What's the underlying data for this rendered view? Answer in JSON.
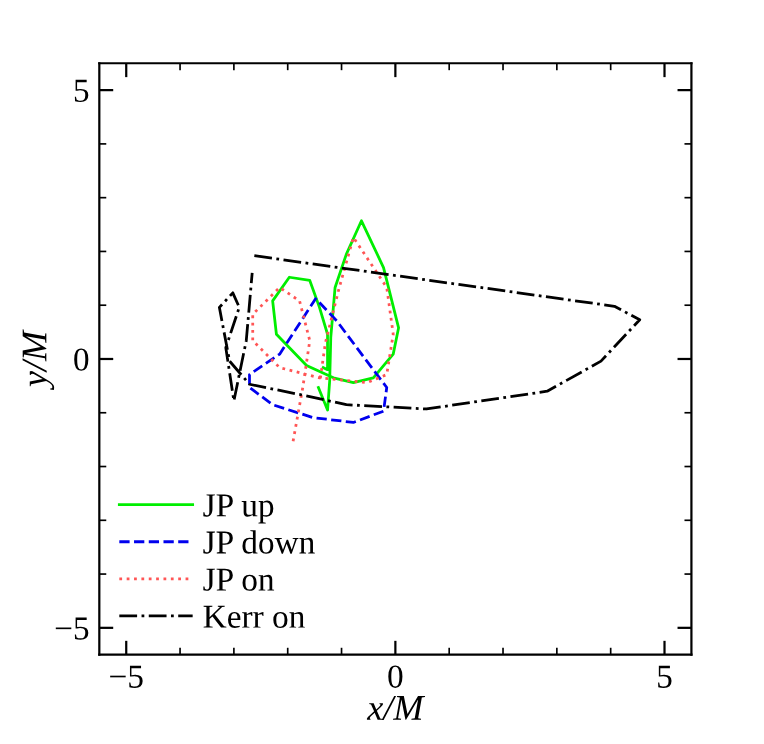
{
  "chart_data": {
    "type": "line",
    "xlabel": "x/M",
    "ylabel": "y/M",
    "xlim": [
      -5.5,
      5.5
    ],
    "ylim": [
      -5.5,
      5.5
    ],
    "xticks": [
      -5,
      0,
      5
    ],
    "yticks": [
      -5,
      0,
      5
    ],
    "grid": false,
    "legend": "bottom left",
    "marker": "none",
    "series": [
      {
        "name": "JP up",
        "color": "#00ee00",
        "line_style": "solid",
        "x": [
          -1.43,
          -1.26,
          -1.22,
          -1.2,
          -1.12,
          -0.91,
          -0.63,
          -0.22,
          0.06,
          -0.04,
          -0.41,
          -0.78,
          -1.15,
          -1.65,
          -2.21,
          -2.28,
          -1.97,
          -1.59,
          -1.41,
          -1.26,
          -1.26,
          -1.34
        ],
        "values": [
          -0.53,
          -0.95,
          -0.4,
          0.4,
          1.33,
          1.95,
          2.57,
          1.7,
          0.58,
          0.09,
          -0.35,
          -0.44,
          -0.35,
          -0.12,
          0.46,
          1.08,
          1.52,
          1.46,
          0.96,
          0.46,
          -0.2,
          -0.16
        ]
      },
      {
        "name": "JP down",
        "color": "#0000ee",
        "line_style": "dashed",
        "x": [
          -1.47,
          -2.15,
          -2.71,
          -2.71,
          -2.28,
          -1.53,
          -0.78,
          -0.22,
          -0.16,
          -0.53,
          -1.09,
          -1.44
        ],
        "values": [
          1.14,
          0.09,
          -0.29,
          -0.53,
          -0.85,
          -1.09,
          -1.18,
          -0.97,
          -0.53,
          -0.04,
          0.71,
          1.08
        ]
      },
      {
        "name": "JP on",
        "color": "#ff5555",
        "line_style": "dotted",
        "x": [
          -1.9,
          -1.72,
          -1.59,
          -1.78,
          -2.15,
          -2.65,
          -2.65,
          -2.15,
          -1.41,
          -0.53,
          -0.16,
          -0.04,
          -0.16,
          -0.78,
          -1.05,
          -1.3,
          -1.4
        ],
        "values": [
          -1.53,
          -0.53,
          0.34,
          1.08,
          1.33,
          0.83,
          0.34,
          -0.16,
          -0.35,
          -0.44,
          -0.29,
          0.46,
          1.33,
          2.26,
          1.3,
          0.3,
          -0.4
        ]
      },
      {
        "name": "Kerr on",
        "color": "#000000",
        "line_style": "dashdot",
        "x": [
          -2.62,
          4.07,
          4.54,
          3.82,
          2.82,
          0.58,
          -0.91,
          -1.78,
          -2.71,
          -3.08,
          -3.27,
          -3.02,
          -2.9,
          -3.15,
          -3.0,
          -2.9,
          -2.77,
          -2.66
        ],
        "values": [
          1.92,
          0.98,
          0.73,
          -0.04,
          -0.6,
          -0.93,
          -0.85,
          -0.66,
          -0.47,
          -0.04,
          0.96,
          1.23,
          0.96,
          0.21,
          -0.78,
          -0.29,
          0.34,
          1.6
        ]
      }
    ]
  }
}
